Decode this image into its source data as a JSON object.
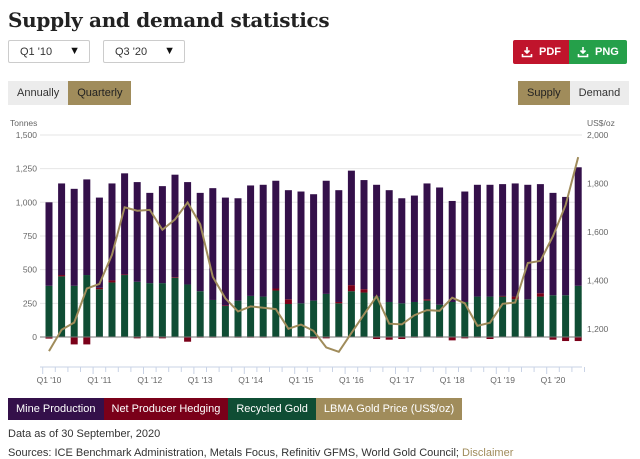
{
  "header": {
    "title": "Supply and demand statistics"
  },
  "filters": {
    "from": {
      "value": "Q1 '10",
      "icon": "caret-down-icon"
    },
    "to": {
      "value": "Q3 '20",
      "icon": "caret-down-icon"
    }
  },
  "period_toggle": {
    "options": [
      "Annually",
      "Quarterly"
    ],
    "selected": "Quarterly"
  },
  "downloads": {
    "pdf_label": "PDF",
    "png_label": "PNG",
    "icon": "download-icon",
    "pdf_color": "#c0142c",
    "png_color": "#25a04a"
  },
  "view_toggle": {
    "options": [
      "Supply",
      "Demand"
    ],
    "selected": "Supply"
  },
  "colors": {
    "mine": "#34104a",
    "hedging": "#7a0019",
    "recycled": "#0f4d34",
    "price": "#a08c5b",
    "accent": "#a08c5b"
  },
  "chart_data": {
    "type": "bar",
    "stacked": true,
    "ylabel": "Tonnes",
    "y2label": "US$/oz",
    "ylim": [
      -125,
      1500
    ],
    "yticks": [
      "0",
      "250",
      "500",
      "750",
      "1,000",
      "1,250",
      "1,500"
    ],
    "y2lim": [
      1100,
      2000
    ],
    "y2ticks": [
      "1,200",
      "1,400",
      "1,600",
      "1,800",
      "2,000"
    ],
    "grid": true,
    "legend": "bottom-left",
    "xticklabels": [
      "Q1 '10",
      "Q1 '11",
      "Q1 '12",
      "Q1 '13",
      "Q1 '14",
      "Q1 '15",
      "Q1 '16",
      "Q1 '17",
      "Q1 '18",
      "Q1 '19",
      "Q1 '20"
    ],
    "categories": [
      "Q1 '10",
      "Q2 '10",
      "Q3 '10",
      "Q4 '10",
      "Q1 '11",
      "Q2 '11",
      "Q3 '11",
      "Q4 '11",
      "Q1 '12",
      "Q2 '12",
      "Q3 '12",
      "Q4 '12",
      "Q1 '13",
      "Q2 '13",
      "Q3 '13",
      "Q4 '13",
      "Q1 '14",
      "Q2 '14",
      "Q3 '14",
      "Q4 '14",
      "Q1 '15",
      "Q2 '15",
      "Q3 '15",
      "Q4 '15",
      "Q1 '16",
      "Q2 '16",
      "Q3 '16",
      "Q4 '16",
      "Q1 '17",
      "Q2 '17",
      "Q3 '17",
      "Q4 '17",
      "Q1 '18",
      "Q2 '18",
      "Q3 '18",
      "Q4 '18",
      "Q1 '19",
      "Q2 '19",
      "Q3 '19",
      "Q4 '19",
      "Q1 '20",
      "Q2 '20",
      "Q3 '20"
    ],
    "series": [
      {
        "name": "Mine Production",
        "values": [
          620,
          680,
          720,
          710,
          670,
          720,
          750,
          740,
          670,
          720,
          760,
          760,
          730,
          830,
          800,
          760,
          820,
          830,
          800,
          810,
          830,
          790,
          840,
          830,
          850,
          810,
          830,
          830,
          780,
          790,
          860,
          870,
          750,
          820,
          830,
          830,
          830,
          840,
          850,
          810,
          760,
          730,
          880
        ]
      },
      {
        "name": "Net Producer Hedging",
        "values": [
          -12,
          10,
          -55,
          -55,
          10,
          15,
          5,
          -10,
          -5,
          -10,
          5,
          -35,
          -5,
          -5,
          5,
          -5,
          -5,
          -5,
          15,
          35,
          -5,
          -10,
          -10,
          10,
          45,
          25,
          -15,
          -20,
          -15,
          -5,
          10,
          -5,
          -25,
          -10,
          -5,
          -15,
          5,
          20,
          -5,
          25,
          -20,
          -30,
          -30
        ]
      },
      {
        "name": "Recycled Gold",
        "values": [
          380,
          450,
          380,
          460,
          355,
          405,
          460,
          410,
          400,
          400,
          440,
          390,
          340,
          275,
          230,
          270,
          305,
          300,
          345,
          245,
          250,
          270,
          320,
          250,
          340,
          330,
          300,
          260,
          250,
          260,
          270,
          240,
          260,
          260,
          300,
          300,
          300,
          280,
          280,
          300,
          310,
          310,
          380
        ]
      },
      {
        "name": "LBMA Gold Price (US$/oz)",
        "axis": "right",
        "values": [
          1109,
          1197,
          1227,
          1367,
          1386,
          1506,
          1702,
          1688,
          1691,
          1609,
          1652,
          1722,
          1632,
          1415,
          1326,
          1272,
          1293,
          1288,
          1282,
          1201,
          1218,
          1192,
          1124,
          1106,
          1183,
          1260,
          1335,
          1222,
          1219,
          1257,
          1278,
          1275,
          1329,
          1306,
          1213,
          1226,
          1304,
          1309,
          1472,
          1481,
          1583,
          1711,
          1909
        ]
      }
    ]
  },
  "legend": [
    {
      "label": "Mine Production",
      "color": "#34104a"
    },
    {
      "label": "Net Producer Hedging",
      "color": "#7a0019"
    },
    {
      "label": "Recycled Gold",
      "color": "#0f4d34"
    },
    {
      "label": "LBMA Gold Price (US$/oz)",
      "color": "#a08c5b"
    }
  ],
  "footer": {
    "data_as_of": "Data as of 30 September, 2020",
    "sources": "Sources: ICE Benchmark Administration, Metals Focus, Refinitiv GFMS, World Gold Council; ",
    "disclaimer": "Disclaimer"
  }
}
